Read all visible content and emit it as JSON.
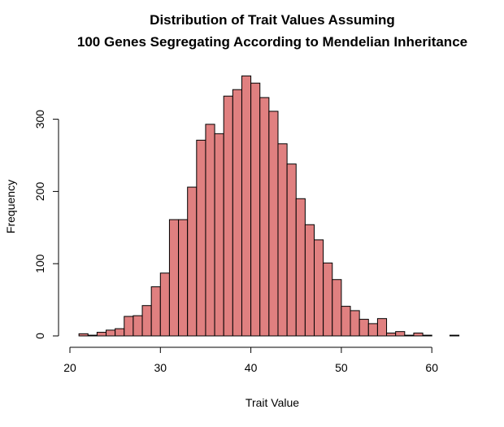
{
  "chart_data": {
    "type": "bar",
    "title_lines": [
      "Distribution of Trait Values Assuming",
      "100 Genes Segregating According to Mendelian Inheritance"
    ],
    "xlabel": "Trait Value",
    "ylabel": "Frequency",
    "bar_color": "#e08080",
    "bin_width": 1,
    "xlim": [
      20,
      63
    ],
    "ylim": [
      0,
      360
    ],
    "x_ticks": [
      20,
      30,
      40,
      50,
      60
    ],
    "y_ticks": [
      0,
      100,
      200,
      300
    ],
    "bins_start": [
      21,
      22,
      23,
      24,
      25,
      26,
      27,
      28,
      29,
      30,
      31,
      32,
      33,
      34,
      35,
      36,
      37,
      38,
      39,
      40,
      41,
      42,
      43,
      44,
      45,
      46,
      47,
      48,
      49,
      50,
      51,
      52,
      53,
      54,
      55,
      56,
      57,
      58,
      59,
      60,
      61,
      62
    ],
    "values": [
      3,
      1,
      5,
      8,
      10,
      27,
      28,
      42,
      68,
      87,
      161,
      161,
      206,
      271,
      293,
      280,
      332,
      341,
      360,
      350,
      330,
      311,
      266,
      238,
      190,
      154,
      133,
      101,
      78,
      41,
      35,
      23,
      17,
      24,
      4,
      6,
      1,
      4,
      1,
      0,
      0,
      1
    ]
  }
}
